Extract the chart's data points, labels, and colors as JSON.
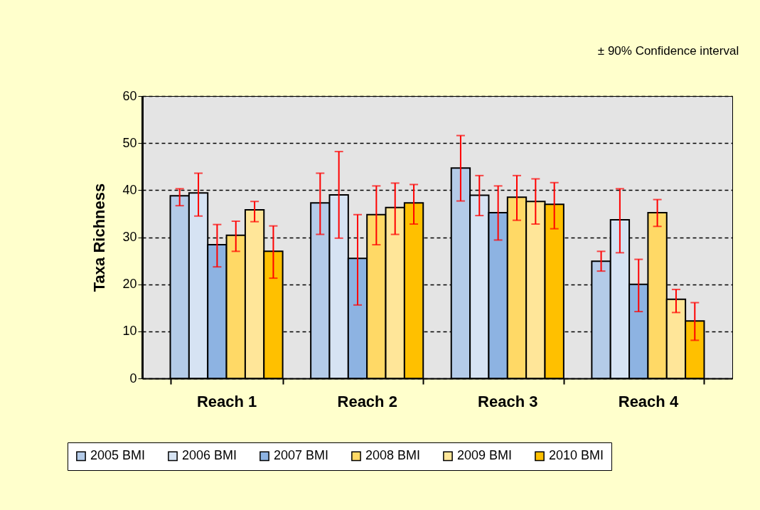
{
  "chart_data": {
    "type": "bar",
    "ylabel": "Taxa Richness",
    "categories": [
      "Reach 1",
      "Reach 2",
      "Reach 3",
      "Reach 4"
    ],
    "series": [
      {
        "name": "2005 BMI",
        "color": "#b4cbe8",
        "values": [
          38.8,
          37.3,
          44.7,
          24.9
        ],
        "errors": [
          [
            36.7,
            40.3
          ],
          [
            30.6,
            43.6
          ],
          [
            37.7,
            51.6
          ],
          [
            22.8,
            27.0
          ]
        ]
      },
      {
        "name": "2006 BMI",
        "color": "#d6e3f3",
        "values": [
          39.4,
          39.0,
          38.9,
          33.7
        ],
        "errors": [
          [
            34.5,
            43.6
          ],
          [
            29.8,
            48.2
          ],
          [
            34.6,
            43.1
          ],
          [
            26.7,
            40.3
          ]
        ]
      },
      {
        "name": "2007 BMI",
        "color": "#8db3e2",
        "values": [
          28.4,
          25.5,
          35.2,
          20.0
        ],
        "errors": [
          [
            23.7,
            32.7
          ],
          [
            15.6,
            34.8
          ],
          [
            29.4,
            40.9
          ],
          [
            14.2,
            25.3
          ]
        ]
      },
      {
        "name": "2008 BMI",
        "color": "#ffd966",
        "values": [
          30.4,
          34.8,
          38.5,
          35.2
        ],
        "errors": [
          [
            27.0,
            33.4
          ],
          [
            28.4,
            40.9
          ],
          [
            33.6,
            43.1
          ],
          [
            32.3,
            38.0
          ]
        ]
      },
      {
        "name": "2009 BMI",
        "color": "#ffe699",
        "values": [
          35.8,
          36.3,
          37.6,
          16.8
        ],
        "errors": [
          [
            33.3,
            37.6
          ],
          [
            30.6,
            41.5
          ],
          [
            32.8,
            42.4
          ],
          [
            14.0,
            18.9
          ]
        ]
      },
      {
        "name": "2010 BMI",
        "color": "#ffc000",
        "values": [
          27.0,
          37.3,
          37.0,
          12.2
        ],
        "errors": [
          [
            21.3,
            32.4
          ],
          [
            32.8,
            41.2
          ],
          [
            31.8,
            41.6
          ],
          [
            8.1,
            16.1
          ]
        ]
      }
    ],
    "ylim": [
      0,
      60
    ],
    "yticks": [
      0,
      10,
      20,
      30,
      40,
      50,
      60
    ],
    "grid": "y",
    "legend": "bottom",
    "annotations": [
      "± 90% Confidence interval"
    ]
  }
}
